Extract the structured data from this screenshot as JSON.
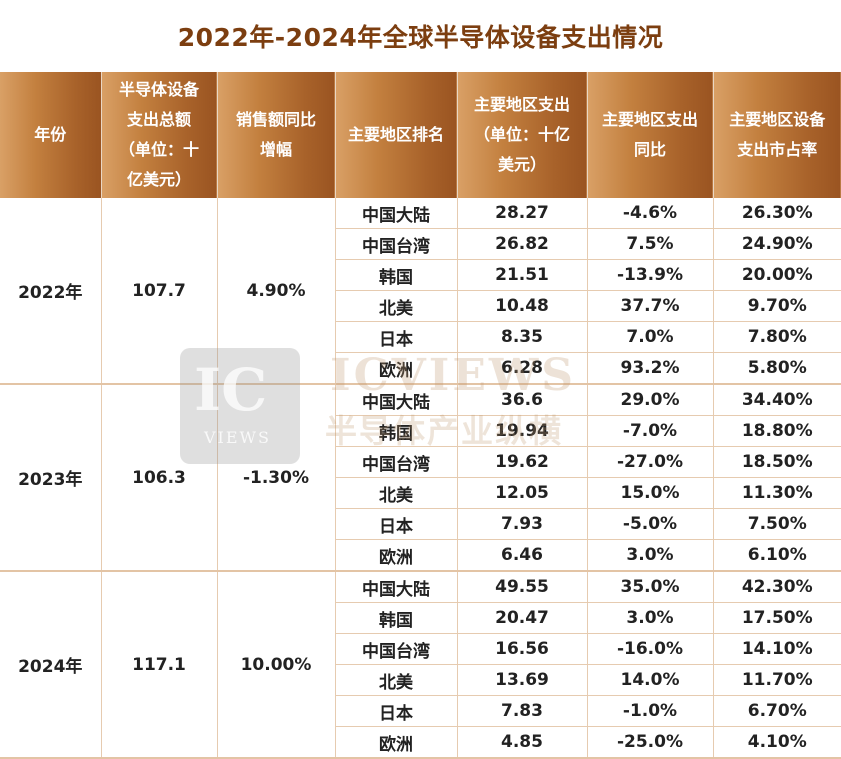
{
  "title": "2022年-2024年全球半导体设备支出情况",
  "headers": [
    [
      "年份"
    ],
    [
      "半导体设备",
      "支出总额",
      "（单位：十",
      "亿美元）"
    ],
    [
      "销售额同比",
      "增幅"
    ],
    [
      "主要地区排名"
    ],
    [
      "主要地区支出",
      "（单位：十亿",
      "美元）"
    ],
    [
      "主要地区支出",
      "同比"
    ],
    [
      "主要地区设备",
      "支出市占率"
    ]
  ],
  "groups": [
    {
      "year": "2022年",
      "total": "107.7",
      "yoy": "4.90%",
      "rows": [
        [
          "中国大陆",
          "28.27",
          "-4.6%",
          "26.30%"
        ],
        [
          "中国台湾",
          "26.82",
          "7.5%",
          "24.90%"
        ],
        [
          "韩国",
          "21.51",
          "-13.9%",
          "20.00%"
        ],
        [
          "北美",
          "10.48",
          "37.7%",
          "9.70%"
        ],
        [
          "日本",
          "8.35",
          "7.0%",
          "7.80%"
        ],
        [
          "欧洲",
          "6.28",
          "93.2%",
          "5.80%"
        ]
      ]
    },
    {
      "year": "2023年",
      "total": "106.3",
      "yoy": "-1.30%",
      "rows": [
        [
          "中国大陆",
          "36.6",
          "29.0%",
          "34.40%"
        ],
        [
          "韩国",
          "19.94",
          "-7.0%",
          "18.80%"
        ],
        [
          "中国台湾",
          "19.62",
          "-27.0%",
          "18.50%"
        ],
        [
          "北美",
          "12.05",
          "15.0%",
          "11.30%"
        ],
        [
          "日本",
          "7.93",
          "-5.0%",
          "7.50%"
        ],
        [
          "欧洲",
          "6.46",
          "3.0%",
          "6.10%"
        ]
      ]
    },
    {
      "year": "2024年",
      "total": "117.1",
      "yoy": "10.00%",
      "rows": [
        [
          "中国大陆",
          "49.55",
          "35.0%",
          "42.30%"
        ],
        [
          "韩国",
          "20.47",
          "3.0%",
          "17.50%"
        ],
        [
          "中国台湾",
          "16.56",
          "-16.0%",
          "14.10%"
        ],
        [
          "北美",
          "13.69",
          "14.0%",
          "11.70%"
        ],
        [
          "日本",
          "7.83",
          "-1.0%",
          "6.70%"
        ],
        [
          "欧洲",
          "4.85",
          "-25.0%",
          "4.10%"
        ]
      ]
    }
  ],
  "watermark": {
    "logo": "IC",
    "logo_sub": "VIEWS",
    "brand_en": "ICVIEWS",
    "brand_cn": "半导体产业纵横"
  },
  "colors": {
    "header_start": "#d9a066",
    "header_end": "#9a5421",
    "title": "#7c3e10",
    "grid": "#e6cbb0"
  }
}
